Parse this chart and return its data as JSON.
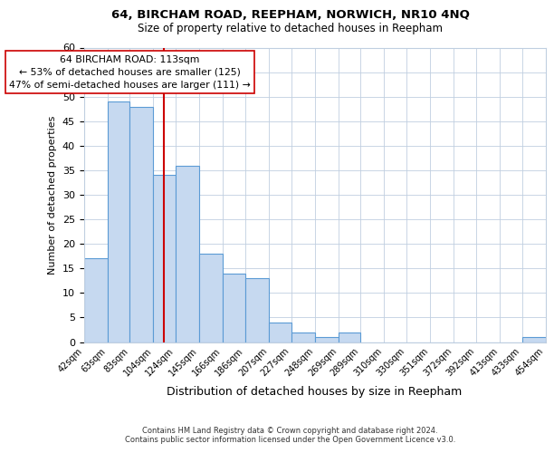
{
  "title": "64, BIRCHAM ROAD, REEPHAM, NORWICH, NR10 4NQ",
  "subtitle": "Size of property relative to detached houses in Reepham",
  "xlabel": "Distribution of detached houses by size in Reepham",
  "ylabel": "Number of detached properties",
  "bin_edges": [
    42,
    63,
    83,
    104,
    124,
    145,
    166,
    186,
    207,
    227,
    248,
    269,
    289,
    310,
    330,
    351,
    372,
    392,
    413,
    433,
    454
  ],
  "bin_labels": [
    "42sqm",
    "63sqm",
    "83sqm",
    "104sqm",
    "124sqm",
    "145sqm",
    "166sqm",
    "186sqm",
    "207sqm",
    "227sqm",
    "248sqm",
    "269sqm",
    "289sqm",
    "310sqm",
    "330sqm",
    "351sqm",
    "372sqm",
    "392sqm",
    "413sqm",
    "433sqm",
    "454sqm"
  ],
  "counts": [
    17,
    49,
    48,
    34,
    36,
    18,
    14,
    13,
    4,
    2,
    1,
    2,
    0,
    0,
    0,
    0,
    0,
    0,
    0,
    1
  ],
  "bar_color": "#c6d9f0",
  "bar_edge_color": "#5b9bd5",
  "vline_x": 113,
  "vline_color": "#cc0000",
  "annotation_line1": "64 BIRCHAM ROAD: 113sqm",
  "annotation_line2": "← 53% of detached houses are smaller (125)",
  "annotation_line3": "47% of semi-detached houses are larger (111) →",
  "annotation_box_color": "#ffffff",
  "annotation_box_edge_color": "#cc0000",
  "ylim": [
    0,
    60
  ],
  "yticks": [
    0,
    5,
    10,
    15,
    20,
    25,
    30,
    35,
    40,
    45,
    50,
    55,
    60
  ],
  "footer_line1": "Contains HM Land Registry data © Crown copyright and database right 2024.",
  "footer_line2": "Contains public sector information licensed under the Open Government Licence v3.0.",
  "bg_color": "#ffffff",
  "grid_color": "#c0cfe0"
}
